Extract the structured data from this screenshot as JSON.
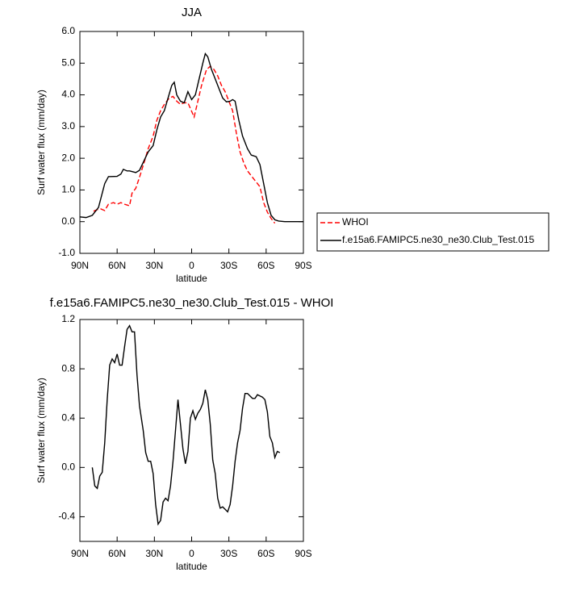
{
  "chart_data": [
    {
      "type": "line",
      "title": "JJA",
      "xlabel": "latitude",
      "ylabel": "Surf water flux (mm/day)",
      "xlim": [
        90,
        -90
      ],
      "xticks": [
        {
          "value": 90,
          "label": "90N"
        },
        {
          "value": 60,
          "label": "60N"
        },
        {
          "value": 30,
          "label": "30N"
        },
        {
          "value": 0,
          "label": "0"
        },
        {
          "value": -30,
          "label": "30S"
        },
        {
          "value": -60,
          "label": "60S"
        },
        {
          "value": -90,
          "label": "90S"
        }
      ],
      "ylim": [
        -1,
        6
      ],
      "yticks": [
        {
          "value": -1,
          "label": "-1.0"
        },
        {
          "value": 0,
          "label": "0.0"
        },
        {
          "value": 1,
          "label": "1.0"
        },
        {
          "value": 2,
          "label": "2.0"
        },
        {
          "value": 3,
          "label": "3.0"
        },
        {
          "value": 4,
          "label": "4.0"
        },
        {
          "value": 5,
          "label": "5.0"
        },
        {
          "value": 6,
          "label": "6.0"
        }
      ],
      "legend": "right",
      "series": [
        {
          "name": "WHOI",
          "color": "#ff0000",
          "line_style": "dashed",
          "x": [
            79,
            76,
            73,
            70,
            67,
            63,
            60,
            57,
            54,
            50,
            48,
            45,
            42,
            38,
            35,
            31,
            28,
            25,
            22,
            18,
            15,
            12,
            9,
            6,
            3,
            -2,
            -5,
            -8,
            -12,
            -15,
            -18,
            -21,
            -24,
            -27,
            -30,
            -33,
            -36,
            -39,
            -42,
            -45,
            -48,
            -51,
            -55,
            -58,
            -61,
            -64,
            -67
          ],
          "values": [
            0.33,
            0.38,
            0.4,
            0.35,
            0.55,
            0.6,
            0.55,
            0.6,
            0.55,
            0.5,
            0.9,
            1.05,
            1.4,
            1.9,
            2.3,
            2.7,
            3.2,
            3.5,
            3.7,
            3.9,
            3.95,
            3.8,
            3.7,
            3.75,
            3.75,
            3.3,
            3.8,
            4.3,
            4.8,
            4.9,
            4.8,
            4.6,
            4.3,
            4.1,
            3.8,
            3.5,
            2.8,
            2.2,
            1.85,
            1.6,
            1.45,
            1.3,
            1.1,
            0.6,
            0.3,
            0.1,
            -0.05
          ]
        },
        {
          "name": "f.e15a6.FAMIPC5.ne30_ne30.Club_Test.015",
          "color": "#000000",
          "line_style": "solid",
          "x": [
            90,
            85,
            80,
            75,
            70,
            67,
            60,
            57,
            55,
            52,
            50,
            45,
            42,
            38,
            35,
            31,
            28,
            25,
            22,
            19,
            16,
            14,
            12,
            9,
            6,
            3,
            0,
            -3,
            -6,
            -9,
            -11,
            -13,
            -16,
            -19,
            -22,
            -25,
            -28,
            -31,
            -33,
            -35,
            -38,
            -41,
            -45,
            -48,
            -52,
            -55,
            -58,
            -61,
            -64,
            -67,
            -70,
            -75,
            -80,
            -85,
            -90
          ],
          "values": [
            0.15,
            0.13,
            0.2,
            0.45,
            1.2,
            1.42,
            1.43,
            1.5,
            1.65,
            1.6,
            1.6,
            1.55,
            1.62,
            1.95,
            2.2,
            2.4,
            2.9,
            3.3,
            3.5,
            3.9,
            4.3,
            4.4,
            4.0,
            3.8,
            3.75,
            4.1,
            3.85,
            4.0,
            4.5,
            5.0,
            5.3,
            5.2,
            4.8,
            4.5,
            4.2,
            3.9,
            3.78,
            3.8,
            3.85,
            3.8,
            3.2,
            2.7,
            2.3,
            2.1,
            2.05,
            1.8,
            1.2,
            0.6,
            0.2,
            0.06,
            0.02,
            0.0,
            0.0,
            0.0,
            0.0
          ]
        }
      ]
    },
    {
      "type": "line",
      "title": "f.e15a6.FAMIPC5.ne30_ne30.Club_Test.015 - WHOI",
      "xlabel": "latitude",
      "ylabel": "Surf water flux (mm/day)",
      "xlim": [
        90,
        -90
      ],
      "xticks": [
        {
          "value": 90,
          "label": "90N"
        },
        {
          "value": 60,
          "label": "60N"
        },
        {
          "value": 30,
          "label": "30N"
        },
        {
          "value": 0,
          "label": "0"
        },
        {
          "value": -30,
          "label": "30S"
        },
        {
          "value": -60,
          "label": "60S"
        },
        {
          "value": -90,
          "label": "90S"
        }
      ],
      "ylim": [
        -0.6,
        1.2
      ],
      "yticks": [
        -0.4,
        {
          "value": 0,
          "label": "0.0"
        },
        0.4,
        0.8,
        1.2
      ],
      "series": [
        {
          "color": "#000000",
          "line_style": "solid",
          "x": [
            80,
            78,
            76,
            74,
            72,
            70,
            68,
            66,
            64,
            62,
            60,
            58,
            56,
            54,
            52,
            50,
            48,
            46,
            44,
            42,
            39,
            37,
            35,
            33,
            31,
            29,
            27,
            25,
            23,
            21,
            19,
            17,
            15,
            13,
            11,
            9,
            7,
            5,
            3,
            1,
            -1,
            -3,
            -5,
            -7,
            -9,
            -11,
            -13,
            -15,
            -17,
            -19,
            -21,
            -23,
            -25,
            -27,
            -29,
            -31,
            -33,
            -35,
            -37,
            -39,
            -41,
            -43,
            -45,
            -47,
            -49,
            -51,
            -53,
            -55,
            -57,
            -59,
            -61,
            -63,
            -65,
            -67,
            -69,
            -71
          ],
          "values": [
            0.0,
            -0.15,
            -0.17,
            -0.07,
            -0.04,
            0.2,
            0.55,
            0.83,
            0.88,
            0.85,
            0.92,
            0.83,
            0.83,
            0.98,
            1.12,
            1.15,
            1.1,
            1.1,
            0.75,
            0.5,
            0.3,
            0.12,
            0.05,
            0.05,
            -0.05,
            -0.3,
            -0.46,
            -0.43,
            -0.28,
            -0.25,
            -0.27,
            -0.15,
            0.05,
            0.3,
            0.55,
            0.35,
            0.15,
            0.03,
            0.13,
            0.4,
            0.46,
            0.39,
            0.44,
            0.47,
            0.52,
            0.63,
            0.55,
            0.35,
            0.06,
            -0.05,
            -0.25,
            -0.33,
            -0.32,
            -0.34,
            -0.36,
            -0.3,
            -0.15,
            0.05,
            0.2,
            0.3,
            0.48,
            0.6,
            0.6,
            0.58,
            0.56,
            0.56,
            0.59,
            0.58,
            0.57,
            0.55,
            0.45,
            0.25,
            0.2,
            0.08,
            0.13,
            0.12
          ]
        }
      ]
    }
  ]
}
